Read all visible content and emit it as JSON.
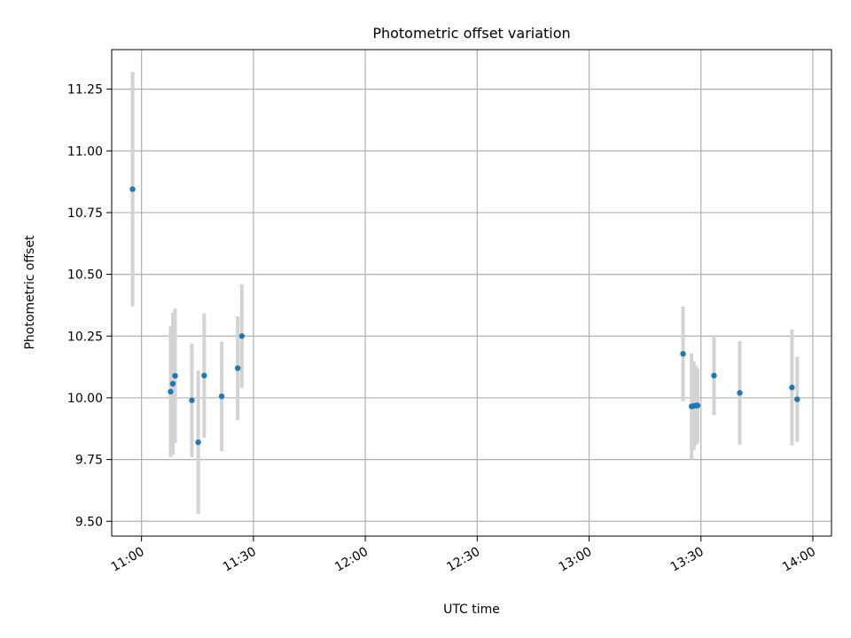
{
  "chart_data": {
    "type": "scatter",
    "title": "Photometric offset variation",
    "xlabel": "UTC time",
    "ylabel": "Photometric offset",
    "grid": true,
    "xlim": [
      "10:52",
      "14:05"
    ],
    "ylim": [
      9.44,
      11.41
    ],
    "x_ticks": [
      "11:00",
      "11:30",
      "12:00",
      "12:30",
      "13:00",
      "13:30",
      "14:00"
    ],
    "y_ticks": [
      9.5,
      9.75,
      10.0,
      10.25,
      10.5,
      10.75,
      11.0,
      11.25
    ],
    "colors": {
      "point": "#1f77b4",
      "errorbar": "#d3d3d3",
      "grid": "#b0b0b0"
    },
    "points": [
      {
        "t": "10:57:36",
        "y": 10.845,
        "err": 0.475
      },
      {
        "t": "11:07:48",
        "y": 10.025,
        "err": 0.265
      },
      {
        "t": "11:08:24",
        "y": 10.057,
        "err": 0.287
      },
      {
        "t": "11:09:00",
        "y": 10.089,
        "err": 0.272
      },
      {
        "t": "11:13:30",
        "y": 9.99,
        "err": 0.23
      },
      {
        "t": "11:15:12",
        "y": 9.82,
        "err": 0.29
      },
      {
        "t": "11:16:48",
        "y": 10.09,
        "err": 0.252
      },
      {
        "t": "11:21:30",
        "y": 10.006,
        "err": 0.222
      },
      {
        "t": "11:25:48",
        "y": 10.12,
        "err": 0.21
      },
      {
        "t": "11:26:54",
        "y": 10.25,
        "err": 0.21
      },
      {
        "t": "13:25:12",
        "y": 10.178,
        "err": 0.192
      },
      {
        "t": "13:27:30",
        "y": 9.965,
        "err": 0.215
      },
      {
        "t": "13:28:06",
        "y": 9.967,
        "err": 0.18
      },
      {
        "t": "13:28:42",
        "y": 9.969,
        "err": 0.16
      },
      {
        "t": "13:29:06",
        "y": 9.969,
        "err": 0.15
      },
      {
        "t": "13:33:30",
        "y": 10.09,
        "err": 0.16
      },
      {
        "t": "13:40:24",
        "y": 10.02,
        "err": 0.21
      },
      {
        "t": "13:54:24",
        "y": 10.042,
        "err": 0.235
      },
      {
        "t": "13:55:48",
        "y": 9.994,
        "err": 0.172
      }
    ]
  }
}
